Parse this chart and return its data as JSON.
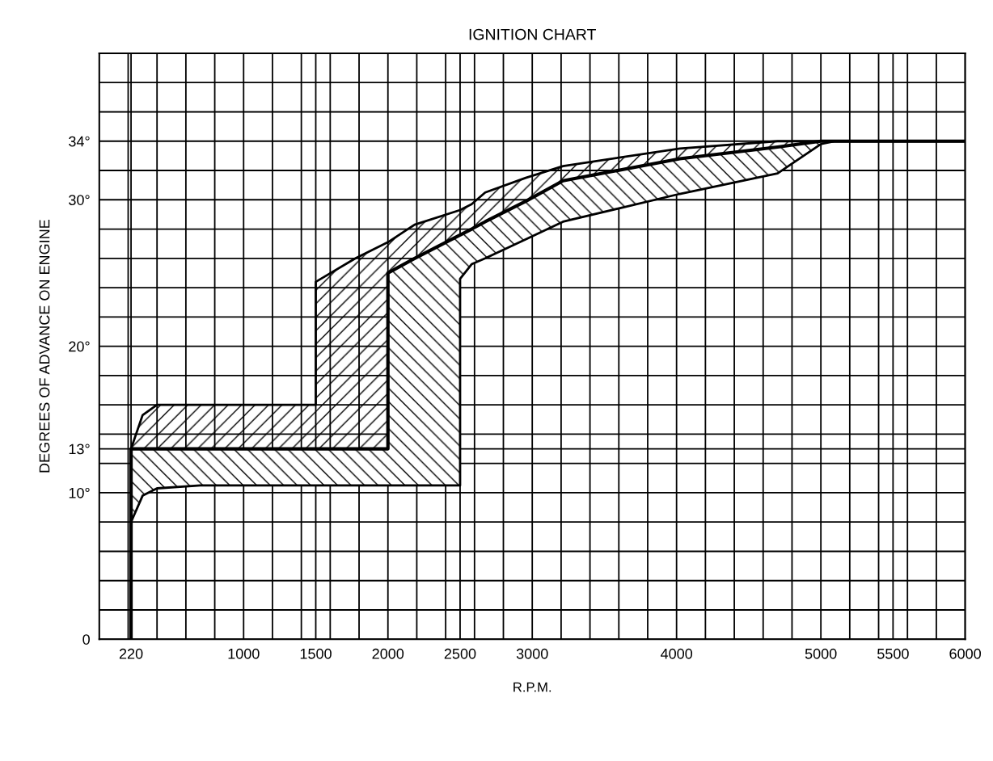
{
  "chart_data": {
    "type": "line",
    "title": "IGNITION CHART",
    "xlabel": "R.P.M.",
    "ylabel": "DEGREES OF ADVANCE ON ENGINE",
    "xlim": [
      0,
      6000
    ],
    "ylim": [
      0,
      40
    ],
    "xticks": [
      {
        "value": 200,
        "label": null
      },
      {
        "value": 220,
        "label": "220"
      },
      {
        "value": 400,
        "label": null
      },
      {
        "value": 600,
        "label": null
      },
      {
        "value": 800,
        "label": null
      },
      1000,
      {
        "value": 1200,
        "label": null
      },
      {
        "value": 1400,
        "label": null
      },
      1500,
      {
        "value": 1600,
        "label": null
      },
      {
        "value": 1800,
        "label": null
      },
      2000,
      {
        "value": 2200,
        "label": null
      },
      {
        "value": 2400,
        "label": null
      },
      2500,
      {
        "value": 2600,
        "label": null
      },
      {
        "value": 2800,
        "label": null
      },
      3000,
      {
        "value": 3200,
        "label": null
      },
      {
        "value": 3400,
        "label": null
      },
      {
        "value": 3600,
        "label": null
      },
      {
        "value": 3800,
        "label": null
      },
      4000,
      {
        "value": 4200,
        "label": null
      },
      {
        "value": 4400,
        "label": null
      },
      {
        "value": 4600,
        "label": null
      },
      {
        "value": 4800,
        "label": null
      },
      5000,
      {
        "value": 5200,
        "label": null
      },
      {
        "value": 5400,
        "label": null
      },
      5500,
      {
        "value": 5600,
        "label": null
      },
      {
        "value": 5800,
        "label": null
      },
      6000
    ],
    "yticks": [
      0,
      {
        "value": 2,
        "label": null
      },
      {
        "value": 4,
        "label": null
      },
      {
        "value": 6,
        "label": null
      },
      {
        "value": 8,
        "label": null
      },
      {
        "value": 10,
        "label": "10°"
      },
      {
        "value": 12,
        "label": null
      },
      {
        "value": 13,
        "label": "13°"
      },
      {
        "value": 14,
        "label": null
      },
      {
        "value": 16,
        "label": null
      },
      {
        "value": 18,
        "label": null
      },
      {
        "value": 20,
        "label": "20°"
      },
      {
        "value": 22,
        "label": null
      },
      {
        "value": 24,
        "label": null
      },
      {
        "value": 26,
        "label": null
      },
      {
        "value": 28,
        "label": null
      },
      {
        "value": 30,
        "label": "30°"
      },
      {
        "value": 32,
        "label": null
      },
      {
        "value": 34,
        "label": "34°"
      },
      {
        "value": 36,
        "label": null
      },
      {
        "value": 38,
        "label": null
      },
      {
        "value": 40,
        "label": null
      }
    ],
    "grid": true,
    "legend": false,
    "series": [
      {
        "color": "#000000",
        "x": [
          220,
          220,
          300,
          400,
          700,
          1500,
          1500,
          1775,
          2000,
          2000,
          2185,
          2500,
          2500,
          2580,
          2674,
          2955,
          3213,
          4022,
          4700,
          5000,
          5100,
          6000
        ],
        "values": [
          0,
          13,
          13,
          13,
          13,
          13,
          13,
          13,
          13,
          25,
          26,
          27.6,
          27.6,
          28,
          28.5,
          29.9,
          31.3,
          32.8,
          33.6,
          34,
          34,
          34
        ],
        "upper": [
          0,
          13,
          15.3,
          16,
          16,
          16,
          24.4,
          26,
          27.1,
          27.1,
          28.3,
          29.3,
          29.3,
          29.7,
          30.5,
          31.5,
          32.3,
          33.5,
          34,
          34,
          34,
          34
        ],
        "lower": [
          0,
          8,
          9.8,
          10.3,
          10.5,
          10.5,
          10.5,
          10.5,
          10.5,
          10.5,
          10.5,
          10.5,
          24.6,
          25.6,
          26,
          27.3,
          28.5,
          30.4,
          31.8,
          33.8,
          34,
          34
        ]
      }
    ]
  }
}
